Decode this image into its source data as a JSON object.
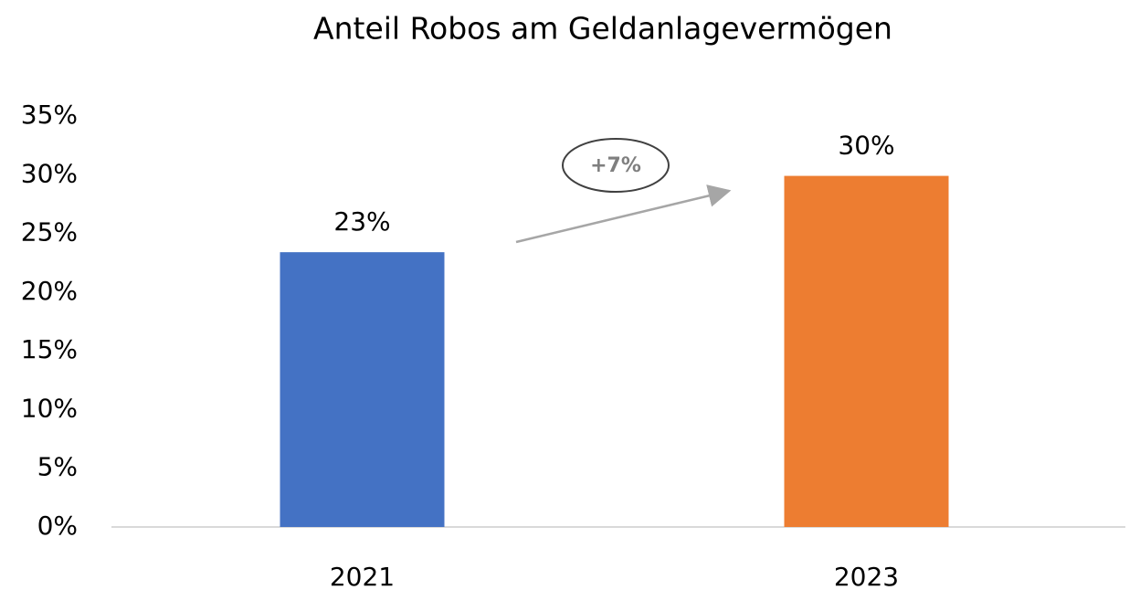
{
  "chart_data": {
    "type": "bar",
    "title": "Anteil Robos am Geldanlagevermögen",
    "categories": [
      "2021",
      "2023"
    ],
    "values": [
      23.4,
      29.9
    ],
    "value_labels": [
      "23%",
      "30%"
    ],
    "colors": [
      "#4472c4",
      "#ed7d31"
    ],
    "ylim": [
      0,
      35
    ],
    "yticks": [
      {
        "value": 0,
        "label": "0%"
      },
      {
        "value": 5,
        "label": "5%"
      },
      {
        "value": 10,
        "label": "10%"
      },
      {
        "value": 15,
        "label": "15%"
      },
      {
        "value": 20,
        "label": "20%"
      },
      {
        "value": 25,
        "label": "25%"
      },
      {
        "value": 30,
        "label": "30%"
      },
      {
        "value": 35,
        "label": "35%"
      }
    ],
    "grid": false,
    "annotation": "+7%"
  }
}
